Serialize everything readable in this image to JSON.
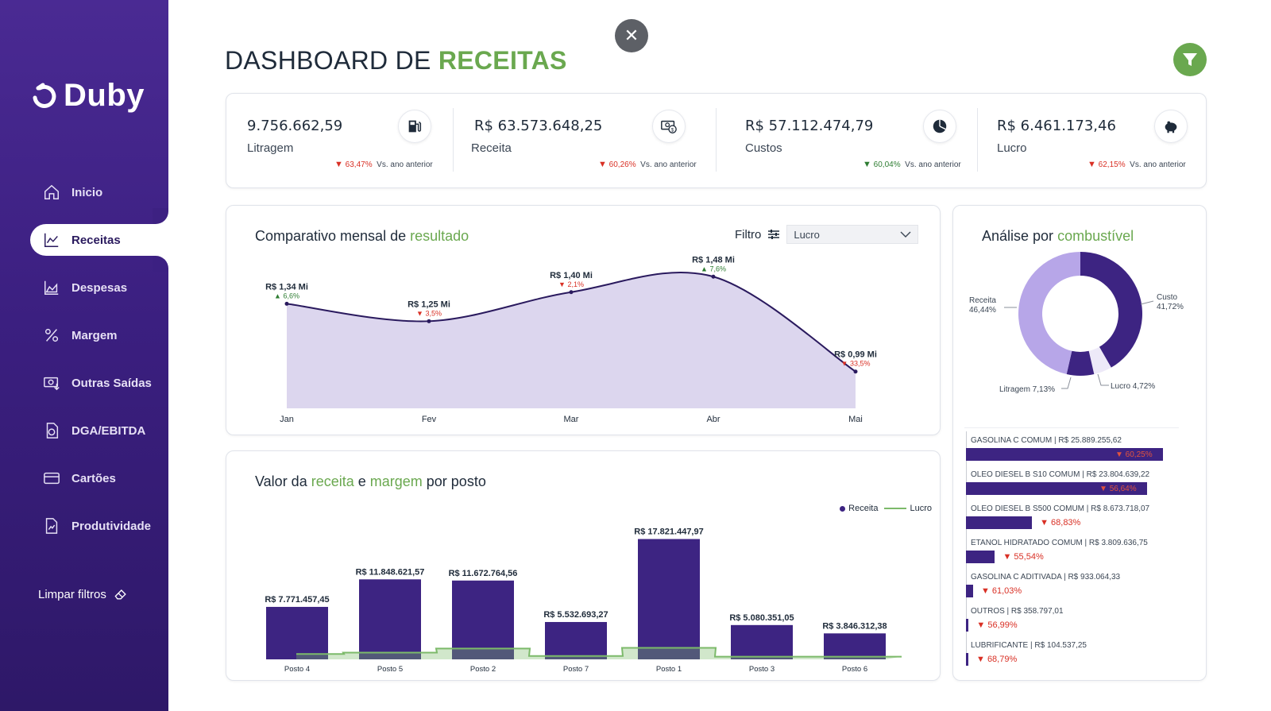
{
  "app": {
    "logo_text": "Duby"
  },
  "sidebar": {
    "items": [
      {
        "label": "Inicio",
        "icon": "home-icon"
      },
      {
        "label": "Receitas",
        "icon": "line-chart-icon",
        "active": true
      },
      {
        "label": "Despesas",
        "icon": "area-chart-icon"
      },
      {
        "label": "Margem",
        "icon": "percent-icon"
      },
      {
        "label": "Outras Saídas",
        "icon": "money-out-icon"
      },
      {
        "label": "DGA/EBITDA",
        "icon": "document-money-icon"
      },
      {
        "label": "Cartões",
        "icon": "credit-card-icon"
      },
      {
        "label": "Produtividade",
        "icon": "report-icon"
      }
    ],
    "clear_filters": "Limpar filtros"
  },
  "header": {
    "title_prefix": "DASHBOARD DE ",
    "title_accent": "RECEITAS",
    "close_symbol": "✕"
  },
  "kpis": [
    {
      "value": "9.756.662,59",
      "label": "Litragem",
      "delta": "63,47%",
      "direction": "down",
      "vs": "Vs. ano anterior",
      "icon": "fuel-pump-icon"
    },
    {
      "value": "R$ 63.573.648,25",
      "label": "Receita",
      "delta": "60,26%",
      "direction": "down",
      "vs": "Vs. ano anterior",
      "icon": "cash-icon"
    },
    {
      "value": "R$ 57.112.474,79",
      "label": "Custos",
      "delta": "60,04%",
      "direction": "up",
      "vs": "Vs. ano anterior",
      "icon": "pie-icon"
    },
    {
      "value": "R$ 6.461.173,46",
      "label": "Lucro",
      "delta": "62,15%",
      "direction": "down",
      "vs": "Vs. ano anterior",
      "icon": "piggy-bank-icon"
    }
  ],
  "monthly": {
    "title_prefix": "Comparativo mensal de ",
    "title_accent": "resultado",
    "filter_label": "Filtro",
    "dropdown_value": "Lucro"
  },
  "station": {
    "title_parts": [
      "Valor da ",
      "receita",
      " e ",
      "margem",
      " por posto"
    ],
    "legend": [
      "Receita",
      "Lucro"
    ]
  },
  "fuel": {
    "title_prefix": "Análise por ",
    "title_accent": "combustível"
  },
  "colors": {
    "purple": "#3d2482",
    "lavender": "#b7a6e8",
    "green": "#6aa84f",
    "red": "#d93025",
    "area": "#dcd6ee"
  },
  "chart_data": [
    {
      "type": "area",
      "categories": [
        "Jan",
        "Fev",
        "Mar",
        "Abr",
        "Mai"
      ],
      "values": [
        1.34,
        1.25,
        1.4,
        1.48,
        0.99
      ],
      "value_labels": [
        "R$ 1,34 Mi",
        "R$ 1,25 Mi",
        "R$ 1,40 Mi",
        "R$ 1,48 Mi",
        "R$ 0,99 Mi"
      ],
      "changes": [
        "6,6%",
        "3,5%",
        "2,1%",
        "7,6%",
        "33,5%"
      ],
      "change_dirs": [
        "up",
        "down",
        "down",
        "up",
        "down"
      ]
    },
    {
      "type": "bar",
      "categories": [
        "Posto 4",
        "Posto 5",
        "Posto 2",
        "Posto 7",
        "Posto 1",
        "Posto 3",
        "Posto 6"
      ],
      "series": [
        {
          "name": "Receita",
          "values": [
            7771457.45,
            11848621.57,
            11672764.56,
            5532693.27,
            17821447.97,
            5080351.05,
            3846312.38
          ]
        },
        {
          "name": "Lucro",
          "values": [
            800000,
            1000000,
            1600000,
            500000,
            1700000,
            400000,
            400000
          ]
        }
      ],
      "value_labels": [
        "R$ 7.771.457,45",
        "R$ 11.848.621,57",
        "R$ 11.672.764,56",
        "R$ 5.532.693,27",
        "R$ 17.821.447,97",
        "R$ 5.080.351,05",
        "R$ 3.846.312,38"
      ]
    },
    {
      "type": "pie",
      "labels": [
        "Receita",
        "Custo",
        "Lucro",
        "Litragem"
      ],
      "values": [
        46.44,
        41.72,
        4.72,
        7.13
      ],
      "value_labels": [
        "46,44%",
        "41,72%",
        "4,72%",
        "7,13%"
      ],
      "colors": [
        "#b7a6e8",
        "#3d2482",
        "#ede9f8",
        "#3d2482"
      ]
    },
    {
      "type": "bar",
      "categories": [
        "GASOLINA C COMUM",
        "OLEO DIESEL B S10 COMUM",
        "OLEO DIESEL B S500 COMUM",
        "ETANOL HIDRATADO COMUM",
        "GASOLINA C ADITIVADA",
        "OUTROS",
        "LUBRIFICANTE"
      ],
      "values": [
        25889255.62,
        23804639.22,
        8673718.07,
        3809636.75,
        933064.33,
        358797.01,
        104537.25
      ],
      "value_labels": [
        "R$ 25.889.255,62",
        "R$ 23.804.639,22",
        "R$ 8.673.718,07",
        "R$ 3.809.636,75",
        "R$ 933.064,33",
        "R$ 358.797,01",
        "R$ 104.537,25"
      ],
      "changes": [
        "60,25%",
        "56,64%",
        "68,83%",
        "55,54%",
        "61,03%",
        "56,99%",
        "68,79%"
      ]
    }
  ]
}
